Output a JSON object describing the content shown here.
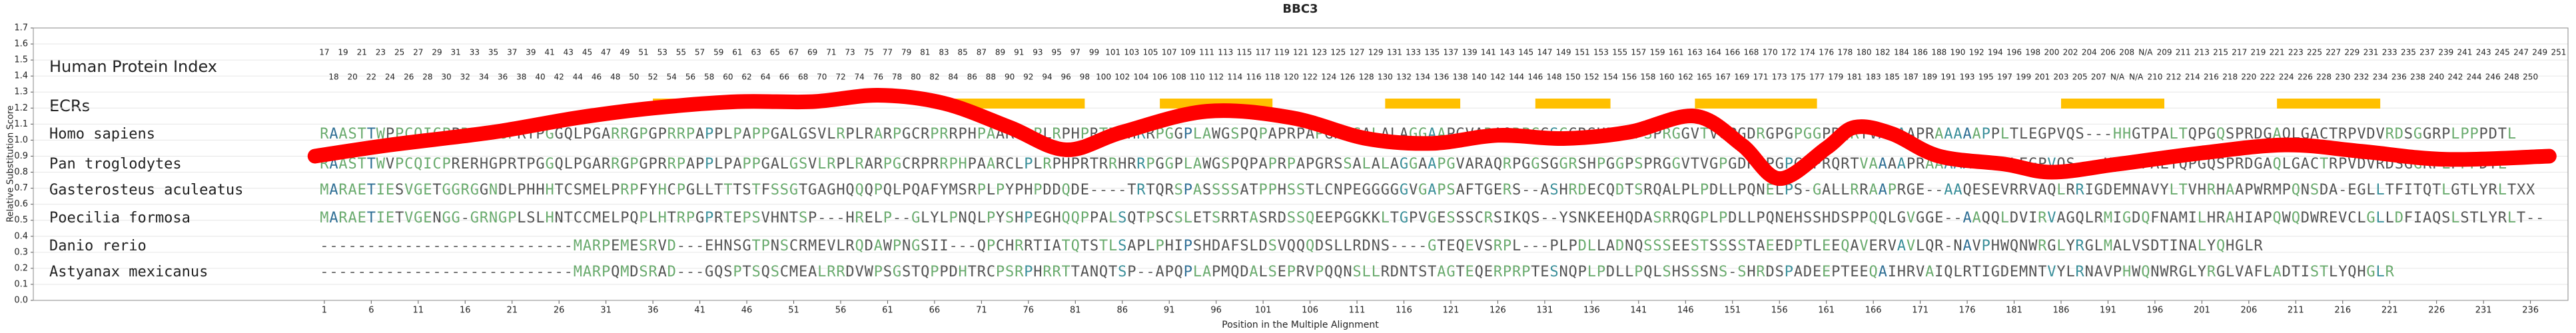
{
  "chart_data": {
    "type": "line",
    "title": "BBC3",
    "x_label": "Position in the Multiple Alignment",
    "y_label": "Relative Substitution Score",
    "xlim": [
      -30,
      240
    ],
    "ylim": [
      0,
      1.7
    ],
    "xticks": [
      1,
      6,
      11,
      16,
      21,
      26,
      31,
      36,
      41,
      46,
      51,
      56,
      61,
      66,
      71,
      76,
      81,
      86,
      91,
      96,
      101,
      106,
      111,
      116,
      121,
      126,
      131,
      136,
      141,
      146,
      151,
      156,
      161,
      166,
      171,
      176,
      181,
      186,
      191,
      196,
      201,
      206,
      211,
      216,
      221,
      226,
      231,
      236
    ],
    "yticks": [
      {
        "value": 0,
        "label": "0.0"
      },
      0.1,
      0.2,
      0.3,
      0.4,
      0.5,
      0.6,
      0.7,
      0.8,
      0.9,
      {
        "value": 1,
        "label": "1.0"
      },
      1.1,
      1.2,
      1.3,
      1.4,
      1.5,
      1.6,
      1.7
    ],
    "grid": true,
    "color": "#ff0000",
    "x": [
      0,
      8,
      19,
      28,
      36,
      45,
      53,
      60,
      67,
      74,
      80,
      86,
      95,
      104,
      112,
      119,
      126,
      133,
      140,
      147,
      152,
      156,
      161,
      164,
      168,
      173,
      180,
      185,
      192,
      201,
      210,
      218,
      227,
      238
    ],
    "values": [
      0.9,
      0.97,
      1.05,
      1.14,
      1.2,
      1.24,
      1.24,
      1.28,
      1.23,
      1.08,
      0.94,
      1.05,
      1.18,
      1.14,
      1.01,
      0.98,
      1.03,
      1.01,
      1.05,
      1.15,
      0.97,
      0.76,
      0.95,
      1.08,
      1.04,
      0.9,
      0.85,
      0.8,
      0.85,
      0.92,
      0.97,
      0.93,
      0.88,
      0.9
    ],
    "index_label": "Human Protein Index",
    "index_top": [
      17,
      19,
      21,
      23,
      25,
      27,
      29,
      31,
      33,
      35,
      37,
      39,
      41,
      43,
      45,
      47,
      49,
      51,
      53,
      55,
      57,
      59,
      61,
      63,
      65,
      67,
      69,
      71,
      73,
      75,
      77,
      79,
      81,
      83,
      85,
      87,
      89,
      91,
      93,
      95,
      97,
      99,
      101,
      103,
      105,
      107,
      109,
      111,
      113,
      115,
      117,
      119,
      121,
      123,
      125,
      127,
      129,
      131,
      133,
      135,
      137,
      139,
      141,
      143,
      145,
      147,
      149,
      151,
      153,
      155,
      157,
      159,
      161,
      163,
      164,
      166,
      168,
      170,
      172,
      174,
      176,
      178,
      180,
      182,
      184,
      186,
      188,
      190,
      192,
      194,
      196,
      198,
      200,
      202,
      204,
      206,
      208,
      "N/A",
      209,
      211,
      213,
      215,
      217,
      219,
      221,
      223,
      225,
      227,
      229,
      231,
      233,
      235,
      237,
      239,
      241,
      243,
      245,
      247,
      249,
      251
    ],
    "index_bottom": [
      18,
      20,
      22,
      24,
      26,
      28,
      30,
      32,
      34,
      36,
      38,
      40,
      42,
      44,
      46,
      48,
      50,
      52,
      54,
      56,
      58,
      60,
      62,
      64,
      66,
      68,
      70,
      72,
      74,
      76,
      78,
      80,
      82,
      84,
      86,
      88,
      90,
      92,
      94,
      96,
      98,
      100,
      102,
      104,
      106,
      108,
      110,
      112,
      114,
      116,
      118,
      120,
      122,
      124,
      126,
      128,
      130,
      132,
      134,
      136,
      138,
      140,
      142,
      144,
      146,
      148,
      150,
      152,
      154,
      156,
      158,
      160,
      162,
      165,
      167,
      169,
      171,
      173,
      175,
      177,
      179,
      181,
      183,
      185,
      187,
      189,
      191,
      193,
      195,
      197,
      199,
      201,
      203,
      205,
      207,
      "N/A",
      "N/A",
      210,
      212,
      214,
      216,
      218,
      220,
      222,
      224,
      226,
      228,
      230,
      232,
      234,
      236,
      238,
      240,
      242,
      244,
      246,
      248,
      250
    ],
    "ecr_label": "ECRs",
    "ecr_color": "#ffc000",
    "ecrs": [
      [
        36,
        50
      ],
      [
        67,
        82
      ],
      [
        90,
        102
      ],
      [
        114,
        122
      ],
      [
        130,
        138
      ],
      [
        147,
        160
      ],
      [
        186,
        197
      ],
      [
        209,
        220
      ]
    ],
    "sequences": [
      {
        "name": "Homo sapiens",
        "residues": "RAASTTWPPCQICPPRERHGPRTPGGQLPGARRGPGPRRPAPPLPAPPGALGSVLRPLRARPGCRPRRPHPAARCLPLRPHPRTRRHRRPGGPLAWGSPQPAPRPAPGRSSALALAGGAAPGVARAQRPGGSGGRSHPGGPSPRGGVTVGPGDRGPGPGGPRQRTVAPAAPRAAAAAPPLTLEGPVQS---HHGTPALTQPGQSPRDGAQLGACTRPVDVRDSGGRPLPPPDTL"
      },
      {
        "name": "Pan troglodytes",
        "residues": "RAASTTWVPCQICPRERHGPRTPGGQLPGARRGPGPRRPAPPLPAPPGALGSVLRPLRARPGCRPRRPHPAARCLPLRPHPRTRRHRRPGGPLAWGSPQPAPRPAPGRSSALALAGGAAPGVARAQRPGGSGGRSHPGGPSPRGGVTVGPGDRGPGPGGPRQRTVAAAAPRAAAAAPPLTLEGPVQS---HHGTPALTQPGQSPRDGAQLGACTRPVDVRDSGGRPLPPPDTL"
      },
      {
        "name": "Gasterosteus aculeatus",
        "residues": "MARAETIESVGETGGRGGNDLPHHHTCSMELPRPFYHCPGLLTTTSTFSSGTGAGHQQQPQLPQAFYMSRPLPYPHPDDQDE----TRTQRSPASSSSATPPHSSTLCNPEGGGGGVGAPSAFTGERS--ASHRDECQDTSRQALPLPDLLPQNELPS-GALLRRAAPRGE--AAQESEVRRVAQLRRIGDEMNAVYLTVHRHAAPWRMPQNSDA-EGLLTFITQTLGTLYRLTXX"
      },
      {
        "name": "Poecilia formosa",
        "residues": "MARAETIETVGENGG-GRNGPLSLHNTCCMELPQPLHTRPGPRTEPSVHNTSP---HRELP--GLYLPNQLPYSHPEGHQQPPALSQTPSCSLETSRRTASRDSSQEEPGGKKLTGPVGESSSCRSIKQS--YSNKEEHQDASRRQGPLPDLLPQNEHSSHDSPPQQLGVGGE--AAQQLDVIRVAGQLRMIGDQFNAMILHRAHIAPQWQDWREVCLGLLDFIAQSLSTLYRLT--"
      },
      {
        "name": "Danio rerio",
        "residues": "---------------------------MARPEMESRVD---EHNSGTPNSCRMEVLRQDAWPNGSII---QPCHRRTIATQTSTLSAPLPHIPSHDAFSLDSVQQQDSLLRDNS----GTEQEVSRPL---PLPDLLADNQSSSEESTSSSSTAEEDPTLEEQAVERVAVLQR-NAVPHWQNWRGLYRGLMALVSDTINALYQHGLR"
      },
      {
        "name": "Astyanax mexicanus",
        "residues": "---------------------------MARPQMDSRAD---GQSPTSQSCMEALRRDVWPSGSTQPPDHTRCPSRPHRRTTANQTSP--APQPLAPMQDALSEPRVPQQNSLLRDNTSTAGTEQERPRPTESNQPLPDLLPQLSHSSSNS-SHRDSPADEEPTEEQAIHRVAIQLRTIGDEMNTVYLRNAVPHWQNWRGLYRGLVAFLADTISTLYQHGLR"
      }
    ]
  }
}
